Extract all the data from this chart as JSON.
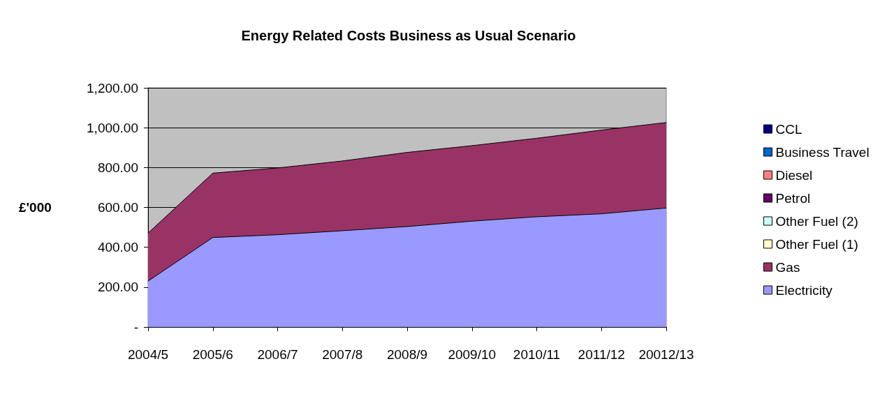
{
  "chart_data": {
    "type": "area",
    "title": "Energy Related Costs Business as Usual Scenario",
    "ylabel": "£'000",
    "categories": [
      "2004/5",
      "2005/6",
      "2006/7",
      "2007/8",
      "2008/9",
      "2009/10",
      "2010/11",
      "2011/12",
      "20012/13"
    ],
    "stacked": true,
    "series": [
      {
        "name": "Electricity",
        "color": "#9999ff",
        "values": [
          230,
          449,
          463,
          483,
          504,
          531,
          553,
          568,
          597
        ]
      },
      {
        "name": "Gas",
        "color": "#993366",
        "values": [
          241,
          323,
          335,
          350,
          372,
          379,
          394,
          420,
          429
        ]
      },
      {
        "name": "Other Fuel (1)",
        "color": "#ffffcc",
        "values": [
          null,
          null,
          null,
          null,
          null,
          null,
          null,
          null,
          null
        ]
      },
      {
        "name": "Other Fuel (2)",
        "color": "#ccffff",
        "values": [
          null,
          null,
          null,
          null,
          null,
          null,
          null,
          null,
          null
        ]
      },
      {
        "name": "Petrol",
        "color": "#660066",
        "values": [
          null,
          null,
          null,
          null,
          null,
          null,
          null,
          null,
          null
        ]
      },
      {
        "name": "Diesel",
        "color": "#ff8080",
        "values": [
          null,
          null,
          null,
          null,
          null,
          null,
          null,
          null,
          null
        ]
      },
      {
        "name": "Business Travel",
        "color": "#0066cc",
        "values": [
          null,
          null,
          null,
          null,
          null,
          null,
          null,
          null,
          null
        ]
      },
      {
        "name": "CCL",
        "color": "#000080",
        "values": [
          null,
          null,
          null,
          null,
          null,
          null,
          null,
          null,
          null
        ]
      }
    ],
    "ylim": [
      0,
      1200
    ],
    "yticks": [
      {
        "value": 0,
        "label": "-"
      },
      {
        "value": 200,
        "label": "200.00"
      },
      {
        "value": 400,
        "label": "400.00"
      },
      {
        "value": 600,
        "label": "600.00"
      },
      {
        "value": 800,
        "label": "800.00"
      },
      {
        "value": 1000,
        "label": "1,000.00"
      },
      {
        "value": 1200,
        "label": "1,200.00"
      }
    ],
    "grid": "y",
    "legend": "right"
  }
}
